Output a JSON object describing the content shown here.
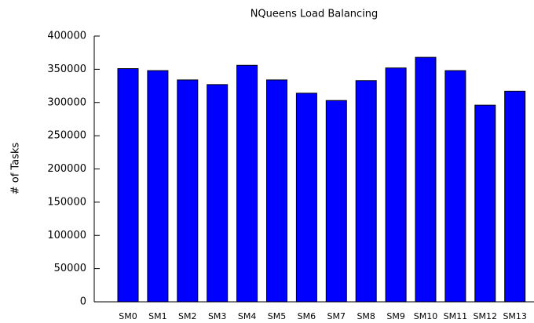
{
  "chart_data": {
    "type": "bar",
    "title": "NQueens Load Balancing",
    "ylabel": "# of Tasks",
    "categories": [
      "SM0",
      "SM1",
      "SM2",
      "SM3",
      "SM4",
      "SM5",
      "SM6",
      "SM7",
      "SM8",
      "SM9",
      "SM10",
      "SM11",
      "SM12",
      "SM13"
    ],
    "values": [
      351000,
      348000,
      334000,
      327000,
      356000,
      334000,
      314000,
      303000,
      333000,
      352000,
      368000,
      348000,
      296000,
      317000
    ],
    "color": "#0000ff",
    "ylim": [
      0,
      400000
    ],
    "yticks": [
      0,
      50000,
      100000,
      150000,
      200000,
      250000,
      300000,
      350000,
      400000
    ],
    "grid": false
  }
}
